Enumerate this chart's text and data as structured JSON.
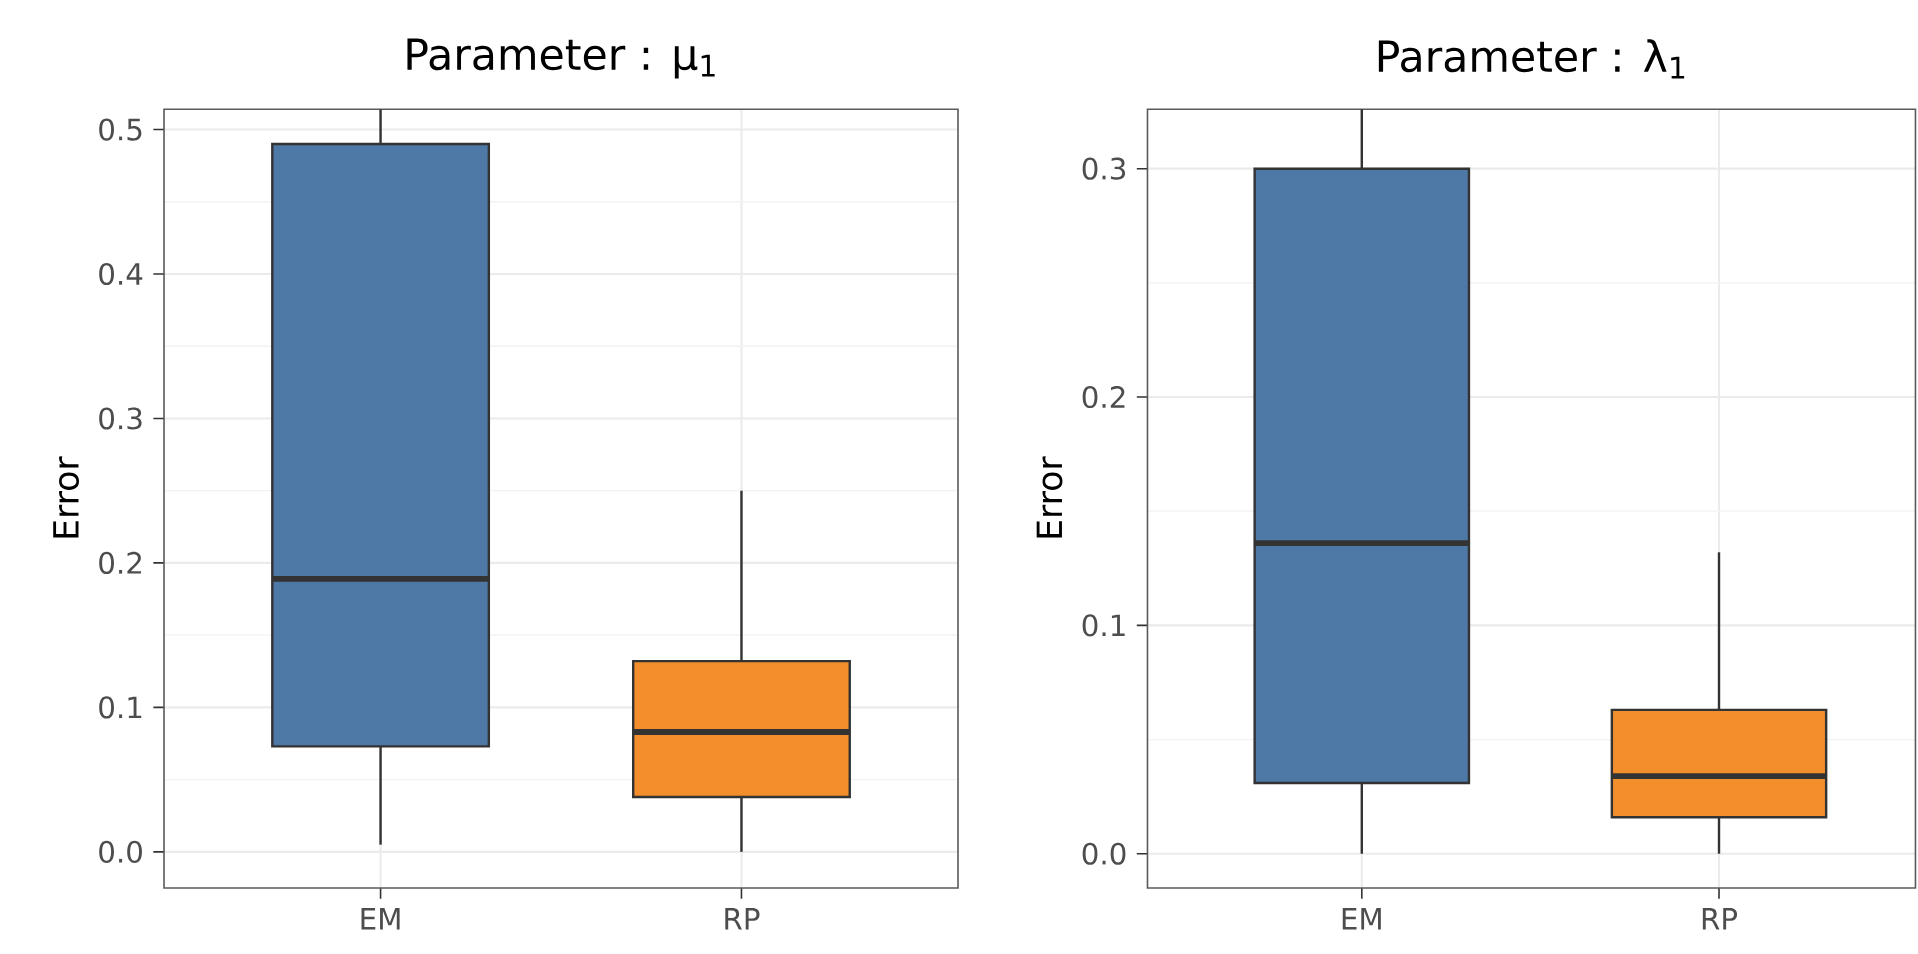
{
  "chart_data": [
    {
      "type": "box",
      "title": "Parameter : μ$_{1}$",
      "ylabel": "Error",
      "categories": [
        "EM",
        "RP"
      ],
      "boxes": [
        {
          "low": 0.005,
          "q1": 0.073,
          "median": 0.189,
          "q3": 0.49,
          "high": 0.514
        },
        {
          "low": 0.0,
          "q1": 0.038,
          "median": 0.083,
          "q3": 0.132,
          "high": 0.25
        }
      ],
      "colors": [
        "#4e79a7",
        "#f28e2b"
      ],
      "ylim": [
        -0.025,
        0.514
      ],
      "yticks": [
        {
          "value": 0,
          "label": "0.0"
        },
        0.1,
        0.2,
        0.3,
        0.4,
        0.5
      ],
      "grid": true
    },
    {
      "type": "box",
      "title": "Parameter : λ$_{1}$",
      "ylabel": "Error",
      "categories": [
        "EM",
        "RP"
      ],
      "boxes": [
        {
          "low": 0.0,
          "q1": 0.031,
          "median": 0.136,
          "q3": 0.3,
          "high": 0.326
        },
        {
          "low": 0.0,
          "q1": 0.016,
          "median": 0.034,
          "q3": 0.063,
          "high": 0.132
        }
      ],
      "colors": [
        "#4e79a7",
        "#f28e2b"
      ],
      "ylim": [
        -0.015,
        0.326
      ],
      "yticks": [
        {
          "value": 0,
          "label": "0.0"
        },
        0.1,
        0.2,
        0.3
      ],
      "grid": true
    }
  ]
}
